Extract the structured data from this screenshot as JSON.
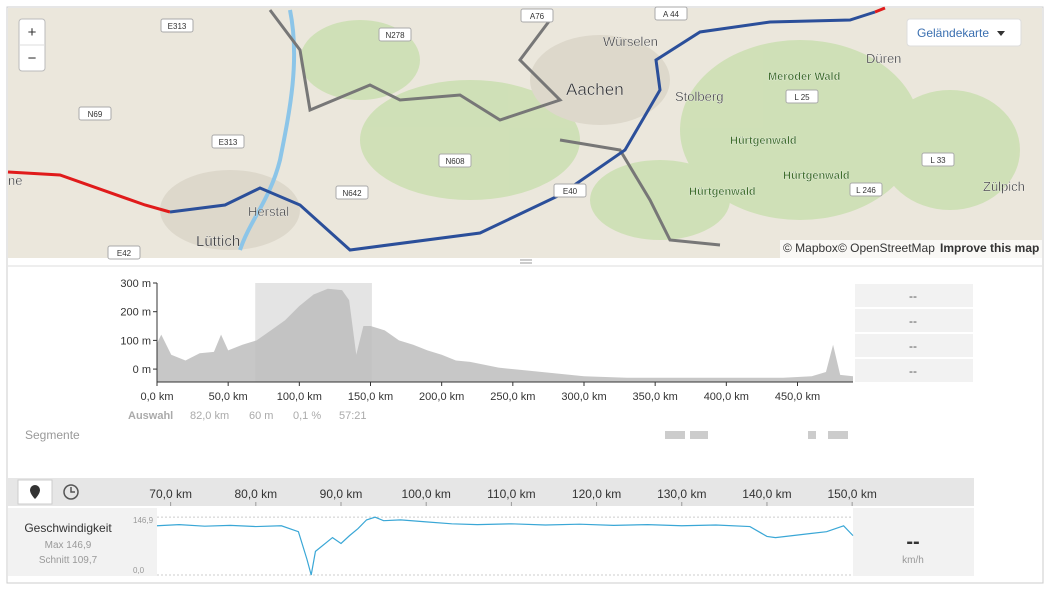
{
  "map": {
    "zoom_in": "+",
    "zoom_out": "−",
    "layer_button": "Geländekarte",
    "attribution": {
      "mapbox": "© Mapbox",
      "osm": "© OpenStreetMap",
      "improve": "Improve this map"
    },
    "places": [
      "Würselen",
      "Aachen",
      "Stolberg",
      "Düren",
      "Meroder Wald",
      "Hürtgenwald",
      "Hürtgenwald",
      "Hürtgenwald",
      "Zülpich",
      "Herstal",
      "Lüttich",
      "ne"
    ],
    "roads": [
      "E313",
      "N278",
      "A76",
      "A 44",
      "N69",
      "E313",
      "N608",
      "N642",
      "E40",
      "L 25",
      "L 33",
      "L 246",
      "E42"
    ]
  },
  "elevation": {
    "xlim": [
      0,
      489
    ],
    "ylim": [
      -45,
      300
    ],
    "yticks": [
      {
        "value": 300,
        "label": "300 m"
      },
      {
        "value": 200,
        "label": "200 m"
      },
      {
        "value": 100,
        "label": "100 m"
      },
      {
        "value": 0,
        "label": "0 m"
      }
    ],
    "xticks": [
      {
        "value": 0,
        "label": "0,0 km"
      },
      {
        "value": 50,
        "label": "50,0 km"
      },
      {
        "value": 100,
        "label": "100,0 km"
      },
      {
        "value": 150,
        "label": "150,0 km"
      },
      {
        "value": 200,
        "label": "200,0 km"
      },
      {
        "value": 250,
        "label": "250,0 km"
      },
      {
        "value": 300,
        "label": "300,0 km"
      },
      {
        "value": 350,
        "label": "350,0 km"
      },
      {
        "value": 400,
        "label": "400,0 km"
      },
      {
        "value": 450,
        "label": "450,0 km"
      }
    ],
    "x": [
      0,
      3,
      10,
      20,
      30,
      40,
      45,
      50,
      60,
      70,
      80,
      90,
      100,
      110,
      120,
      130,
      135,
      140,
      145,
      150,
      160,
      170,
      180,
      190,
      200,
      210,
      220,
      230,
      240,
      260,
      280,
      300,
      330,
      360,
      400,
      440,
      460,
      470,
      475,
      480,
      489
    ],
    "values": [
      90,
      120,
      50,
      30,
      55,
      60,
      120,
      65,
      85,
      100,
      135,
      170,
      220,
      260,
      280,
      275,
      240,
      50,
      150,
      150,
      135,
      100,
      85,
      65,
      50,
      30,
      25,
      15,
      5,
      -5,
      -15,
      -25,
      -30,
      -30,
      -30,
      -30,
      -25,
      -10,
      85,
      -20,
      -25
    ],
    "selection": [
      69,
      151
    ],
    "stats": {
      "label": "Auswahl",
      "distance": "82,0 km",
      "climb": "60 m",
      "grade": "0,1 %",
      "time": "57:21"
    },
    "side_values": [
      "--",
      "--",
      "--",
      "--"
    ]
  },
  "segments_label": "Segmente",
  "speed": {
    "label": "Geschwindigkeit",
    "max": "Max 146,9",
    "avg": "Schnitt 109,7",
    "current": "--",
    "unit": "km/h",
    "xlim": [
      68.4,
      150.1
    ],
    "ylim": [
      0,
      160
    ],
    "yticks": [
      {
        "value": 146.9,
        "label": "146,9"
      },
      {
        "value": 0,
        "label": "0,0"
      }
    ],
    "xticks": [
      {
        "value": 70,
        "label": "70,0 km"
      },
      {
        "value": 80,
        "label": "80,0 km"
      },
      {
        "value": 90,
        "label": "90,0 km"
      },
      {
        "value": 100,
        "label": "100,0 km"
      },
      {
        "value": 110,
        "label": "110,0 km"
      },
      {
        "value": 120,
        "label": "120,0 km"
      },
      {
        "value": 130,
        "label": "130,0 km"
      },
      {
        "value": 140,
        "label": "140,0 km"
      },
      {
        "value": 150,
        "label": "150,0 km"
      }
    ],
    "x": [
      68.4,
      71,
      74,
      77,
      80,
      83,
      85,
      86,
      86.5,
      87,
      89,
      90,
      91,
      92,
      93,
      94,
      95,
      97,
      100,
      103,
      106,
      110,
      114,
      118,
      122,
      126,
      130,
      134,
      138,
      140,
      141,
      143,
      145,
      147,
      149,
      150.1
    ],
    "values": [
      125,
      128,
      124,
      126,
      123,
      125,
      110,
      40,
      0,
      60,
      95,
      80,
      100,
      118,
      140,
      146.9,
      138,
      140,
      135,
      130,
      128,
      130,
      127,
      129,
      126,
      128,
      125,
      127,
      123,
      98,
      95,
      100,
      105,
      110,
      125,
      100
    ]
  }
}
